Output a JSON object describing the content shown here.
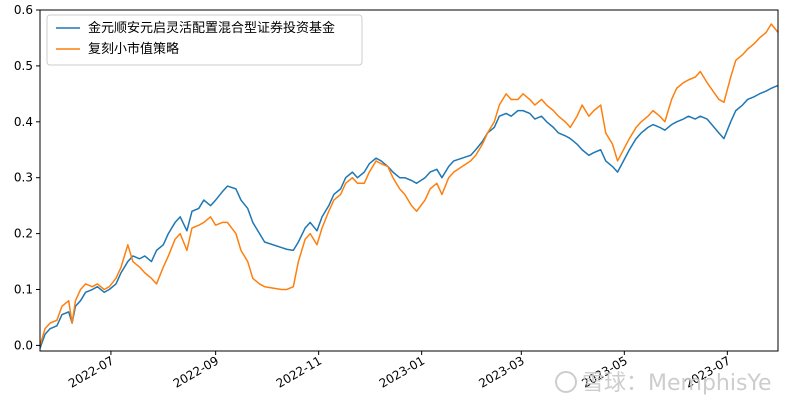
{
  "chart_data": {
    "type": "line",
    "title": "",
    "xlabel": "",
    "ylabel": "",
    "x_start": "2022-05-20",
    "x_end": "2023-07-31",
    "xlim": [
      "2022-05-20",
      "2023-07-31"
    ],
    "ylim": [
      -0.01,
      0.6
    ],
    "yticks": [
      0.0,
      0.1,
      0.2,
      0.3,
      0.4,
      0.5,
      0.6
    ],
    "ytick_labels": [
      "0.0",
      "0.1",
      "0.2",
      "0.3",
      "0.4",
      "0.5",
      "0.6"
    ],
    "xticks": [
      "2022-07-01",
      "2022-09-01",
      "2022-11-01",
      "2023-01-01",
      "2023-03-01",
      "2023-05-01",
      "2023-07-01"
    ],
    "xtick_labels": [
      "2022-07",
      "2022-09",
      "2022-11",
      "2023-01",
      "2023-03",
      "2023-05",
      "2023-07"
    ],
    "grid": false,
    "legend_position": "top-left",
    "series": [
      {
        "name": "金元顺安元启灵活配置混合型证券投资基金",
        "color": "#1f77b4",
        "points": [
          [
            "2022-05-20",
            -0.005
          ],
          [
            "2022-05-23",
            0.02
          ],
          [
            "2022-05-26",
            0.03
          ],
          [
            "2022-05-30",
            0.035
          ],
          [
            "2022-06-02",
            0.055
          ],
          [
            "2022-06-06",
            0.06
          ],
          [
            "2022-06-08",
            0.04
          ],
          [
            "2022-06-10",
            0.07
          ],
          [
            "2022-06-13",
            0.08
          ],
          [
            "2022-06-16",
            0.095
          ],
          [
            "2022-06-20",
            0.1
          ],
          [
            "2022-06-23",
            0.105
          ],
          [
            "2022-06-27",
            0.095
          ],
          [
            "2022-06-30",
            0.1
          ],
          [
            "2022-07-04",
            0.11
          ],
          [
            "2022-07-07",
            0.13
          ],
          [
            "2022-07-11",
            0.15
          ],
          [
            "2022-07-14",
            0.16
          ],
          [
            "2022-07-18",
            0.155
          ],
          [
            "2022-07-21",
            0.16
          ],
          [
            "2022-07-25",
            0.15
          ],
          [
            "2022-07-28",
            0.17
          ],
          [
            "2022-08-01",
            0.18
          ],
          [
            "2022-08-04",
            0.2
          ],
          [
            "2022-08-08",
            0.22
          ],
          [
            "2022-08-11",
            0.23
          ],
          [
            "2022-08-15",
            0.205
          ],
          [
            "2022-08-18",
            0.24
          ],
          [
            "2022-08-22",
            0.245
          ],
          [
            "2022-08-25",
            0.26
          ],
          [
            "2022-08-29",
            0.25
          ],
          [
            "2022-09-01",
            0.26
          ],
          [
            "2022-09-05",
            0.275
          ],
          [
            "2022-09-08",
            0.285
          ],
          [
            "2022-09-13",
            0.28
          ],
          [
            "2022-09-16",
            0.26
          ],
          [
            "2022-09-20",
            0.245
          ],
          [
            "2022-09-23",
            0.22
          ],
          [
            "2022-09-27",
            0.2
          ],
          [
            "2022-09-30",
            0.185
          ],
          [
            "2022-10-10",
            0.175
          ],
          [
            "2022-10-13",
            0.172
          ],
          [
            "2022-10-17",
            0.17
          ],
          [
            "2022-10-20",
            0.185
          ],
          [
            "2022-10-24",
            0.21
          ],
          [
            "2022-10-27",
            0.22
          ],
          [
            "2022-10-31",
            0.205
          ],
          [
            "2022-11-03",
            0.23
          ],
          [
            "2022-11-07",
            0.25
          ],
          [
            "2022-11-10",
            0.27
          ],
          [
            "2022-11-14",
            0.28
          ],
          [
            "2022-11-17",
            0.3
          ],
          [
            "2022-11-21",
            0.31
          ],
          [
            "2022-11-24",
            0.3
          ],
          [
            "2022-11-28",
            0.31
          ],
          [
            "2022-12-01",
            0.325
          ],
          [
            "2022-12-05",
            0.335
          ],
          [
            "2022-12-08",
            0.33
          ],
          [
            "2022-12-12",
            0.32
          ],
          [
            "2022-12-15",
            0.31
          ],
          [
            "2022-12-19",
            0.3
          ],
          [
            "2022-12-22",
            0.3
          ],
          [
            "2022-12-26",
            0.295
          ],
          [
            "2022-12-29",
            0.29
          ],
          [
            "2023-01-03",
            0.3
          ],
          [
            "2023-01-06",
            0.31
          ],
          [
            "2023-01-10",
            0.315
          ],
          [
            "2023-01-13",
            0.3
          ],
          [
            "2023-01-17",
            0.32
          ],
          [
            "2023-01-20",
            0.33
          ],
          [
            "2023-01-30",
            0.34
          ],
          [
            "2023-02-02",
            0.35
          ],
          [
            "2023-02-06",
            0.365
          ],
          [
            "2023-02-09",
            0.38
          ],
          [
            "2023-02-13",
            0.39
          ],
          [
            "2023-02-16",
            0.41
          ],
          [
            "2023-02-20",
            0.415
          ],
          [
            "2023-02-23",
            0.41
          ],
          [
            "2023-02-27",
            0.42
          ],
          [
            "2023-03-02",
            0.42
          ],
          [
            "2023-03-06",
            0.415
          ],
          [
            "2023-03-09",
            0.405
          ],
          [
            "2023-03-13",
            0.41
          ],
          [
            "2023-03-16",
            0.4
          ],
          [
            "2023-03-20",
            0.39
          ],
          [
            "2023-03-23",
            0.38
          ],
          [
            "2023-03-27",
            0.375
          ],
          [
            "2023-03-30",
            0.37
          ],
          [
            "2023-04-03",
            0.36
          ],
          [
            "2023-04-06",
            0.35
          ],
          [
            "2023-04-10",
            0.34
          ],
          [
            "2023-04-13",
            0.345
          ],
          [
            "2023-04-17",
            0.35
          ],
          [
            "2023-04-20",
            0.33
          ],
          [
            "2023-04-24",
            0.32
          ],
          [
            "2023-04-27",
            0.31
          ],
          [
            "2023-05-04",
            0.35
          ],
          [
            "2023-05-08",
            0.37
          ],
          [
            "2023-05-11",
            0.38
          ],
          [
            "2023-05-15",
            0.39
          ],
          [
            "2023-05-18",
            0.395
          ],
          [
            "2023-05-22",
            0.39
          ],
          [
            "2023-05-25",
            0.385
          ],
          [
            "2023-05-29",
            0.395
          ],
          [
            "2023-06-01",
            0.4
          ],
          [
            "2023-06-05",
            0.405
          ],
          [
            "2023-06-08",
            0.41
          ],
          [
            "2023-06-12",
            0.405
          ],
          [
            "2023-06-15",
            0.41
          ],
          [
            "2023-06-19",
            0.405
          ],
          [
            "2023-06-26",
            0.38
          ],
          [
            "2023-06-29",
            0.37
          ],
          [
            "2023-07-03",
            0.4
          ],
          [
            "2023-07-06",
            0.42
          ],
          [
            "2023-07-10",
            0.43
          ],
          [
            "2023-07-13",
            0.44
          ],
          [
            "2023-07-17",
            0.445
          ],
          [
            "2023-07-20",
            0.45
          ],
          [
            "2023-07-24",
            0.455
          ],
          [
            "2023-07-27",
            0.46
          ],
          [
            "2023-07-31",
            0.465
          ]
        ]
      },
      {
        "name": "复刻小市值策略",
        "color": "#ff7f0e",
        "points": [
          [
            "2022-05-20",
            0.0
          ],
          [
            "2022-05-23",
            0.03
          ],
          [
            "2022-05-26",
            0.04
          ],
          [
            "2022-05-30",
            0.045
          ],
          [
            "2022-06-02",
            0.07
          ],
          [
            "2022-06-06",
            0.08
          ],
          [
            "2022-06-08",
            0.04
          ],
          [
            "2022-06-10",
            0.08
          ],
          [
            "2022-06-13",
            0.1
          ],
          [
            "2022-06-16",
            0.11
          ],
          [
            "2022-06-20",
            0.105
          ],
          [
            "2022-06-23",
            0.11
          ],
          [
            "2022-06-27",
            0.1
          ],
          [
            "2022-06-30",
            0.105
          ],
          [
            "2022-07-04",
            0.12
          ],
          [
            "2022-07-07",
            0.14
          ],
          [
            "2022-07-11",
            0.18
          ],
          [
            "2022-07-14",
            0.15
          ],
          [
            "2022-07-18",
            0.14
          ],
          [
            "2022-07-21",
            0.13
          ],
          [
            "2022-07-25",
            0.12
          ],
          [
            "2022-07-28",
            0.11
          ],
          [
            "2022-08-01",
            0.14
          ],
          [
            "2022-08-04",
            0.16
          ],
          [
            "2022-08-08",
            0.19
          ],
          [
            "2022-08-11",
            0.2
          ],
          [
            "2022-08-15",
            0.17
          ],
          [
            "2022-08-18",
            0.21
          ],
          [
            "2022-08-22",
            0.215
          ],
          [
            "2022-08-25",
            0.22
          ],
          [
            "2022-08-29",
            0.23
          ],
          [
            "2022-09-01",
            0.215
          ],
          [
            "2022-09-05",
            0.22
          ],
          [
            "2022-09-08",
            0.22
          ],
          [
            "2022-09-13",
            0.2
          ],
          [
            "2022-09-16",
            0.17
          ],
          [
            "2022-09-20",
            0.15
          ],
          [
            "2022-09-23",
            0.12
          ],
          [
            "2022-09-27",
            0.11
          ],
          [
            "2022-09-30",
            0.105
          ],
          [
            "2022-10-10",
            0.1
          ],
          [
            "2022-10-13",
            0.1
          ],
          [
            "2022-10-17",
            0.105
          ],
          [
            "2022-10-20",
            0.15
          ],
          [
            "2022-10-24",
            0.19
          ],
          [
            "2022-10-27",
            0.2
          ],
          [
            "2022-10-31",
            0.18
          ],
          [
            "2022-11-03",
            0.21
          ],
          [
            "2022-11-07",
            0.24
          ],
          [
            "2022-11-10",
            0.26
          ],
          [
            "2022-11-14",
            0.27
          ],
          [
            "2022-11-17",
            0.29
          ],
          [
            "2022-11-21",
            0.3
          ],
          [
            "2022-11-24",
            0.29
          ],
          [
            "2022-11-28",
            0.29
          ],
          [
            "2022-12-01",
            0.31
          ],
          [
            "2022-12-05",
            0.33
          ],
          [
            "2022-12-08",
            0.325
          ],
          [
            "2022-12-12",
            0.32
          ],
          [
            "2022-12-15",
            0.3
          ],
          [
            "2022-12-19",
            0.28
          ],
          [
            "2022-12-22",
            0.27
          ],
          [
            "2022-12-26",
            0.25
          ],
          [
            "2022-12-29",
            0.24
          ],
          [
            "2023-01-03",
            0.26
          ],
          [
            "2023-01-06",
            0.28
          ],
          [
            "2023-01-10",
            0.29
          ],
          [
            "2023-01-13",
            0.27
          ],
          [
            "2023-01-17",
            0.3
          ],
          [
            "2023-01-20",
            0.31
          ],
          [
            "2023-01-30",
            0.33
          ],
          [
            "2023-02-02",
            0.34
          ],
          [
            "2023-02-06",
            0.36
          ],
          [
            "2023-02-09",
            0.38
          ],
          [
            "2023-02-13",
            0.4
          ],
          [
            "2023-02-16",
            0.43
          ],
          [
            "2023-02-20",
            0.45
          ],
          [
            "2023-02-23",
            0.44
          ],
          [
            "2023-02-27",
            0.44
          ],
          [
            "2023-03-02",
            0.45
          ],
          [
            "2023-03-06",
            0.44
          ],
          [
            "2023-03-09",
            0.43
          ],
          [
            "2023-03-13",
            0.44
          ],
          [
            "2023-03-16",
            0.43
          ],
          [
            "2023-03-20",
            0.42
          ],
          [
            "2023-03-23",
            0.41
          ],
          [
            "2023-03-27",
            0.4
          ],
          [
            "2023-03-30",
            0.39
          ],
          [
            "2023-04-03",
            0.41
          ],
          [
            "2023-04-06",
            0.43
          ],
          [
            "2023-04-10",
            0.41
          ],
          [
            "2023-04-13",
            0.42
          ],
          [
            "2023-04-17",
            0.43
          ],
          [
            "2023-04-20",
            0.38
          ],
          [
            "2023-04-24",
            0.36
          ],
          [
            "2023-04-27",
            0.33
          ],
          [
            "2023-05-04",
            0.37
          ],
          [
            "2023-05-08",
            0.39
          ],
          [
            "2023-05-11",
            0.4
          ],
          [
            "2023-05-15",
            0.41
          ],
          [
            "2023-05-18",
            0.42
          ],
          [
            "2023-05-22",
            0.41
          ],
          [
            "2023-05-25",
            0.4
          ],
          [
            "2023-05-29",
            0.44
          ],
          [
            "2023-06-01",
            0.46
          ],
          [
            "2023-06-05",
            0.47
          ],
          [
            "2023-06-08",
            0.475
          ],
          [
            "2023-06-12",
            0.48
          ],
          [
            "2023-06-15",
            0.49
          ],
          [
            "2023-06-19",
            0.47
          ],
          [
            "2023-06-26",
            0.44
          ],
          [
            "2023-06-29",
            0.435
          ],
          [
            "2023-07-03",
            0.48
          ],
          [
            "2023-07-06",
            0.51
          ],
          [
            "2023-07-10",
            0.52
          ],
          [
            "2023-07-13",
            0.53
          ],
          [
            "2023-07-17",
            0.54
          ],
          [
            "2023-07-20",
            0.55
          ],
          [
            "2023-07-24",
            0.56
          ],
          [
            "2023-07-27",
            0.575
          ],
          [
            "2023-07-31",
            0.56
          ]
        ]
      }
    ]
  },
  "watermark": {
    "text": "雪球：MemphisYe"
  }
}
